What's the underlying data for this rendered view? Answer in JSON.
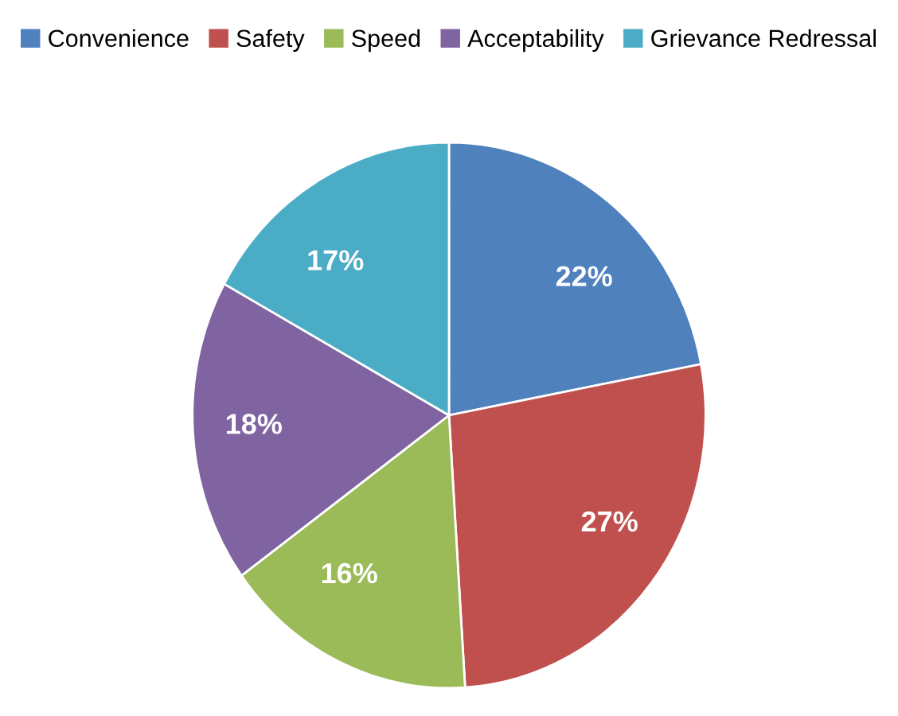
{
  "chart_data": {
    "type": "pie",
    "categories": [
      "Convenience",
      "Safety",
      "Speed",
      "Acceptability",
      "Grievance Redressal"
    ],
    "values": [
      22,
      27,
      16,
      18,
      17
    ],
    "colors": [
      "#4f81bd",
      "#c0504d",
      "#9bbb59",
      "#8064a2",
      "#4bacc6"
    ],
    "value_labels": [
      "22%",
      "27%",
      "16%",
      "18%",
      "17%"
    ],
    "legend": "top"
  }
}
